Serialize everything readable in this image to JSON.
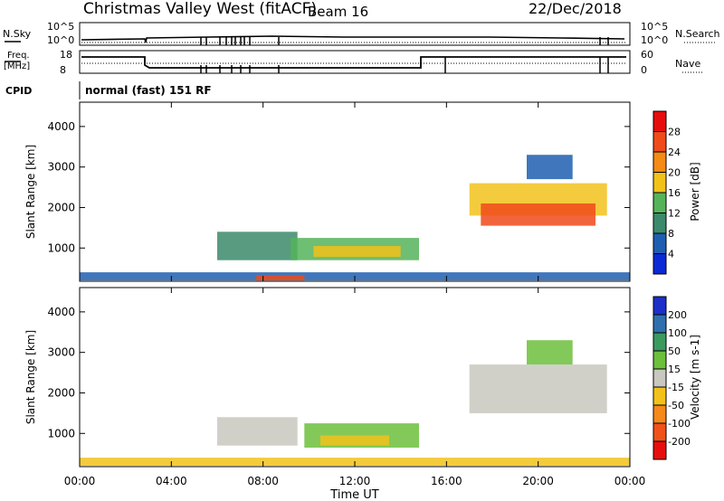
{
  "header": {
    "title": "Christmas Valley West (fitACF)",
    "beam": "Beam 16",
    "date": "22/Dec/2018"
  },
  "noise_panel": {
    "left_label": "N.Sky",
    "right_label": "N.Search",
    "left_ticks": [
      "10^5",
      "10^0"
    ],
    "right_ticks": [
      "10^5",
      "10^0"
    ]
  },
  "freq_panel": {
    "left_label_1": "Freq.",
    "left_label_2": "[MHz]",
    "right_label": "Nave",
    "left_ticks": [
      "18",
      "8"
    ],
    "right_ticks": [
      "60",
      "0"
    ]
  },
  "cpid": {
    "label": "CPID",
    "text": "normal (fast) 151 RF"
  },
  "time_axis": {
    "label": "Time UT",
    "ticks": [
      "00:00",
      "04:00",
      "08:00",
      "12:00",
      "16:00",
      "20:00",
      "00:00"
    ]
  },
  "chart_data": [
    {
      "type": "heatmap",
      "name": "power",
      "ylabel": "Slant Range [km]",
      "yticks": [
        1000,
        2000,
        3000,
        4000
      ],
      "ylim": [
        180,
        4600
      ],
      "xlim_hours": [
        0,
        24
      ],
      "colorbar": {
        "label": "Power [dB]",
        "ticks": [
          "4",
          "8",
          "12",
          "16",
          "20",
          "24",
          "28"
        ],
        "colors": [
          "#0a2ad6",
          "#1f5fb0",
          "#3b8a6b",
          "#55b35a",
          "#f2c21a",
          "#f58a14",
          "#f04a1a",
          "#e80d0d"
        ]
      },
      "regions": [
        {
          "t0": 0.0,
          "t1": 24.0,
          "r0": 200,
          "r1": 400,
          "value": 6
        },
        {
          "t0": 7.7,
          "t1": 9.8,
          "r0": 200,
          "r1": 320,
          "value": 26
        },
        {
          "t0": 6.0,
          "t1": 9.5,
          "r0": 700,
          "r1": 1400,
          "value": 9
        },
        {
          "t0": 9.2,
          "t1": 14.8,
          "r0": 700,
          "r1": 1250,
          "value": 14
        },
        {
          "t0": 10.2,
          "t1": 14.0,
          "r0": 780,
          "r1": 1050,
          "value": 19
        },
        {
          "t0": 17.0,
          "t1": 23.0,
          "r0": 1800,
          "r1": 2600,
          "value": 17
        },
        {
          "t0": 17.5,
          "t1": 22.5,
          "r0": 1550,
          "r1": 2100,
          "value": 24
        },
        {
          "t0": 19.5,
          "t1": 21.5,
          "r0": 2700,
          "r1": 3300,
          "value": 7
        }
      ]
    },
    {
      "type": "heatmap",
      "name": "velocity",
      "ylabel": "Slant Range [km]",
      "yticks": [
        1000,
        2000,
        3000,
        4000
      ],
      "ylim": [
        180,
        4600
      ],
      "xlim_hours": [
        0,
        24
      ],
      "colorbar": {
        "label": "Velocity [m s-1]",
        "ticks": [
          "200",
          "100",
          "50",
          "15",
          "-15",
          "-50",
          "-100",
          "-200"
        ],
        "colors": [
          "#1c2fc8",
          "#2f6fae",
          "#3b9a5e",
          "#6cc03c",
          "#c8c8c0",
          "#f2c21a",
          "#f5891a",
          "#f0521a",
          "#e80d0d"
        ]
      },
      "regions": [
        {
          "t0": 0.0,
          "t1": 24.0,
          "r0": 200,
          "r1": 400,
          "value": -40
        },
        {
          "t0": 6.0,
          "t1": 9.5,
          "r0": 700,
          "r1": 1400,
          "value": 0
        },
        {
          "t0": 9.8,
          "t1": 14.8,
          "r0": 650,
          "r1": 1250,
          "value": 30
        },
        {
          "t0": 10.5,
          "t1": 13.5,
          "r0": 700,
          "r1": 950,
          "value": -45
        },
        {
          "t0": 17.0,
          "t1": 23.0,
          "r0": 1500,
          "r1": 2700,
          "value": 0
        },
        {
          "t0": 19.5,
          "t1": 21.5,
          "r0": 2700,
          "r1": 3300,
          "value": 60
        }
      ]
    }
  ]
}
